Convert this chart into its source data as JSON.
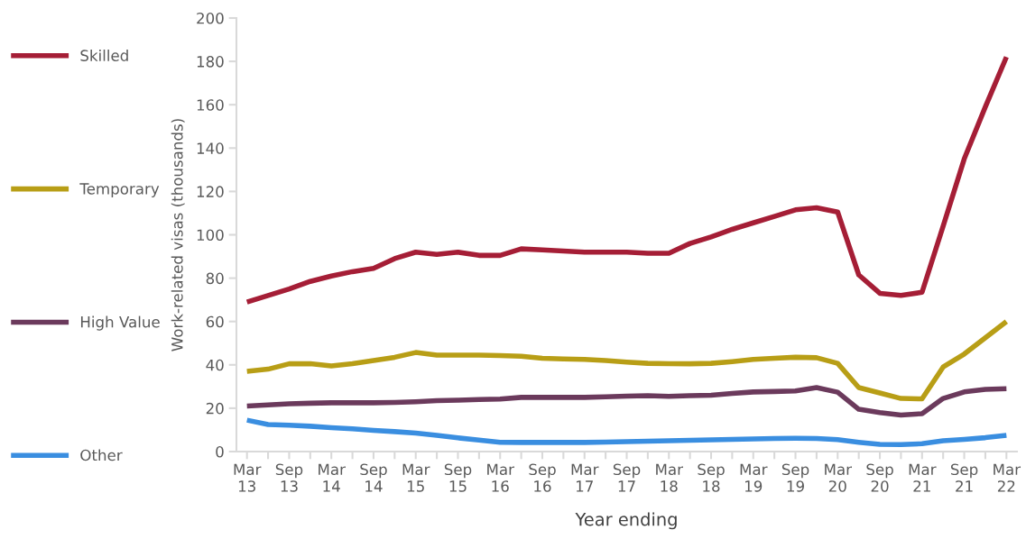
{
  "chart_data": {
    "type": "line",
    "xlabel": "Year ending",
    "ylabel": "Work-related visas (thousands)",
    "categories": [
      "Mar\n13",
      null,
      "Sep\n13",
      null,
      "Mar\n14",
      null,
      "Sep\n14",
      null,
      "Mar\n15",
      null,
      "Sep\n15",
      null,
      "Mar\n16",
      null,
      "Sep\n16",
      null,
      "Mar\n17",
      null,
      "Sep\n17",
      null,
      "Mar\n18",
      null,
      "Sep\n18",
      null,
      "Mar\n19",
      null,
      "Sep\n19",
      null,
      "Mar\n20",
      null,
      "Sep\n20",
      null,
      "Mar\n21",
      null,
      "Sep\n21",
      null,
      "Mar\n22"
    ],
    "series": [
      {
        "name": "Skilled",
        "color": "#a51e36",
        "values": [
          69,
          72,
          75,
          78.5,
          81,
          83,
          84.5,
          89,
          92,
          91,
          92,
          90.5,
          90.5,
          93.5,
          93,
          92.5,
          92,
          92,
          92,
          91.5,
          91.5,
          96,
          99,
          102.5,
          105.5,
          108.5,
          111.5,
          112.5,
          110.5,
          81.5,
          73,
          72,
          73.5,
          104,
          135,
          159,
          182
        ]
      },
      {
        "name": "Temporary",
        "color": "#b89e16",
        "values": [
          37,
          38,
          40.5,
          40.5,
          39.5,
          40.5,
          42,
          43.5,
          45.7,
          44.5,
          44.5,
          44.5,
          44.3,
          44,
          43,
          42.7,
          42.5,
          42,
          41.3,
          40.7,
          40.5,
          40.5,
          40.7,
          41.5,
          42.5,
          43,
          43.5,
          43.3,
          40.7,
          29.5,
          27,
          24.5,
          24.3,
          39,
          45,
          52.5,
          60
        ]
      },
      {
        "name": "High Value",
        "color": "#6b3a5c",
        "values": [
          21,
          21.5,
          22,
          22.3,
          22.5,
          22.5,
          22.5,
          22.7,
          23,
          23.5,
          23.7,
          24,
          24.2,
          25,
          25,
          25,
          25,
          25.3,
          25.6,
          25.8,
          25.5,
          25.8,
          26,
          26.8,
          27.5,
          27.7,
          28,
          29.5,
          27.4,
          19.5,
          18,
          16.8,
          17.5,
          24.5,
          27.5,
          28.7,
          29
        ]
      },
      {
        "name": "Other",
        "color": "#3a8ee0",
        "values": [
          14.5,
          12.5,
          12.2,
          11.7,
          11,
          10.5,
          9.8,
          9.2,
          8.5,
          7.5,
          6.3,
          5.3,
          4.3,
          4.2,
          4.2,
          4.2,
          4.2,
          4.4,
          4.6,
          4.8,
          5,
          5.2,
          5.4,
          5.6,
          5.8,
          6,
          6.1,
          6,
          5.5,
          4.3,
          3.3,
          3.2,
          3.6,
          5,
          5.6,
          6.4,
          7.5
        ]
      }
    ],
    "ylim": [
      0,
      200
    ],
    "yticks": [
      0,
      20,
      40,
      60,
      80,
      100,
      120,
      140,
      160,
      180,
      200
    ],
    "grid": false,
    "legend": "left",
    "marker": "none",
    "line_style": "solid"
  }
}
